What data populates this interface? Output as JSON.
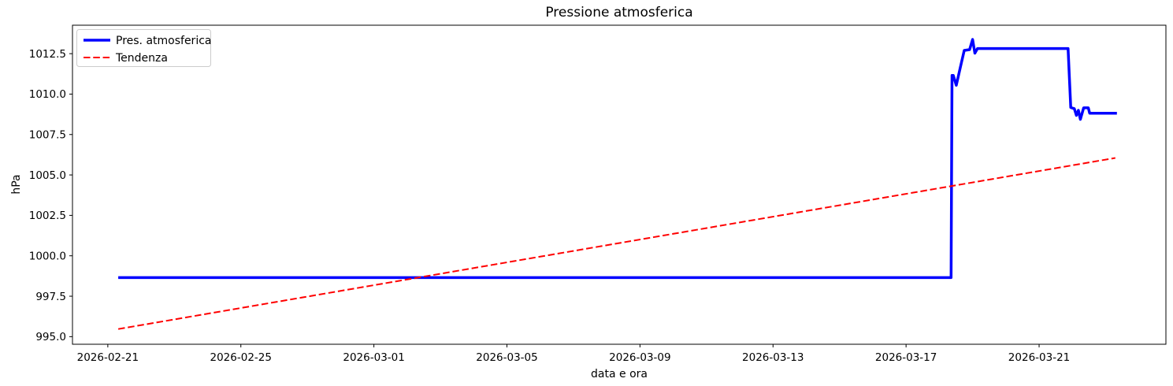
{
  "chart_data": {
    "type": "line",
    "title": "Pressione atmosferica",
    "xlabel": "data e ora",
    "ylabel": "hPa",
    "grid": false,
    "legend_position": "upper left",
    "ylim": [
      994.53,
      1014.26
    ],
    "xlim": [
      "2026-02-19T22:30Z",
      "2026-03-24T19:30Z"
    ],
    "y_ticks": [
      995.0,
      997.5,
      1000.0,
      1002.5,
      1005.0,
      1007.5,
      1010.0,
      1012.5
    ],
    "x_ticks": [
      "2026-02-21",
      "2026-02-25",
      "2026-03-01",
      "2026-03-05",
      "2026-03-09",
      "2026-03-13",
      "2026-03-17",
      "2026-03-21"
    ],
    "series": [
      {
        "name": "Pres. atmosferica",
        "color": "#0000ff",
        "style": "solid",
        "width": 3.5,
        "points": [
          [
            "2026-02-21T07:30Z",
            998.65
          ],
          [
            "2026-03-18T08:30Z",
            998.65
          ],
          [
            "2026-03-18T09:10Z",
            1011.15
          ],
          [
            "2026-03-18T10:05Z",
            1011.15
          ],
          [
            "2026-03-18T12:15Z",
            1010.55
          ],
          [
            "2026-03-18T15:00Z",
            1011.6
          ],
          [
            "2026-03-18T18:00Z",
            1012.7
          ],
          [
            "2026-03-18T21:50Z",
            1012.75
          ],
          [
            "2026-03-19T00:00Z",
            1013.38
          ],
          [
            "2026-03-19T01:40Z",
            1012.53
          ],
          [
            "2026-03-19T03:30Z",
            1012.82
          ],
          [
            "2026-03-21T20:55Z",
            1012.82
          ],
          [
            "2026-03-21T22:50Z",
            1009.17
          ],
          [
            "2026-03-22T01:25Z",
            1009.1
          ],
          [
            "2026-03-22T02:55Z",
            1008.68
          ],
          [
            "2026-03-22T04:20Z",
            1009.0
          ],
          [
            "2026-03-22T05:45Z",
            1008.44
          ],
          [
            "2026-03-22T08:10Z",
            1009.15
          ],
          [
            "2026-03-22T11:30Z",
            1009.15
          ],
          [
            "2026-03-22T12:30Z",
            1008.82
          ],
          [
            "2026-03-23T08:10Z",
            1008.82
          ]
        ]
      },
      {
        "name": "Tendenza",
        "color": "#ff0000",
        "style": "dashed",
        "width": 2,
        "points": [
          [
            "2026-02-21T07:30Z",
            995.47
          ],
          [
            "2026-03-23T07:00Z",
            1006.05
          ]
        ]
      }
    ],
    "colors": {
      "axis": "#000000",
      "legend_border": "#cccccc",
      "legend_background": "#ffffff"
    }
  }
}
